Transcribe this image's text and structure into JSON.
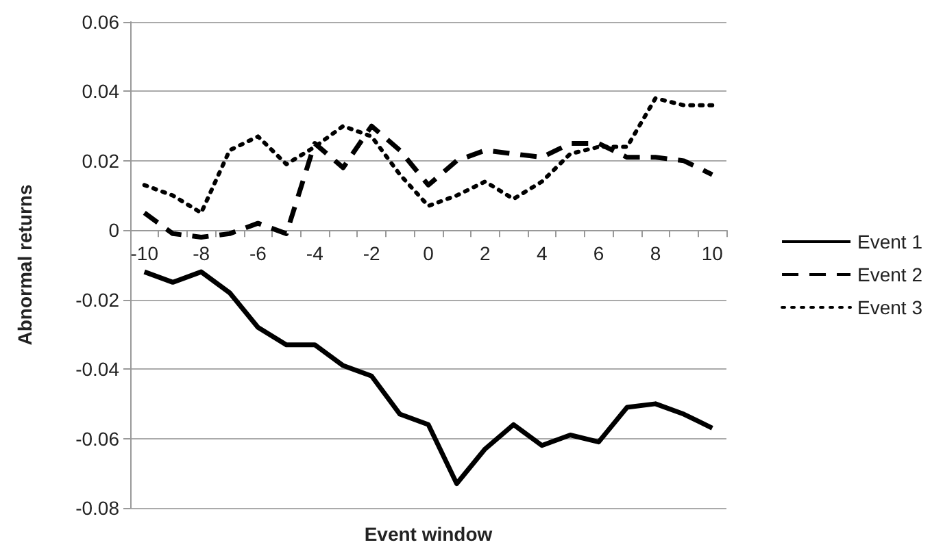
{
  "chart_data": {
    "type": "line",
    "xlabel": "Event window",
    "ylabel": "Abnormal returns",
    "categories": [
      "-10",
      null,
      "-8",
      null,
      "-6",
      null,
      "-4",
      null,
      "-2",
      null,
      "0",
      null,
      "2",
      null,
      "4",
      null,
      "6",
      null,
      "8",
      null,
      "10"
    ],
    "series": [
      {
        "name": "Event 1",
        "color": "#000000",
        "line_style": "solid",
        "values": [
          -0.012,
          -0.015,
          -0.012,
          -0.018,
          -0.028,
          -0.033,
          -0.033,
          -0.039,
          -0.042,
          -0.053,
          -0.056,
          -0.073,
          -0.063,
          -0.056,
          -0.062,
          -0.059,
          -0.061,
          -0.051,
          -0.05,
          -0.053,
          -0.057
        ]
      },
      {
        "name": "Event 2",
        "color": "#000000",
        "line_style": "dashed",
        "values": [
          0.005,
          -0.001,
          -0.002,
          -0.001,
          0.002,
          -0.001,
          0.025,
          0.018,
          0.03,
          0.023,
          0.013,
          0.02,
          0.023,
          0.022,
          0.021,
          0.025,
          0.025,
          0.021,
          0.021,
          0.02,
          0.016
        ]
      },
      {
        "name": "Event 3",
        "color": "#000000",
        "line_style": "dotted",
        "values": [
          0.013,
          0.01,
          0.005,
          0.023,
          0.027,
          0.019,
          0.024,
          0.03,
          0.027,
          0.016,
          0.007,
          0.01,
          0.014,
          0.009,
          0.014,
          0.022,
          0.024,
          0.024,
          0.038,
          0.036,
          0.036
        ]
      }
    ],
    "ylim": [
      -0.08,
      0.06
    ],
    "yticks": [
      -0.08,
      -0.06,
      -0.04,
      -0.02,
      0,
      0.02,
      0.04,
      0.06
    ],
    "grid": "y",
    "legend": "right",
    "marker": "none"
  }
}
